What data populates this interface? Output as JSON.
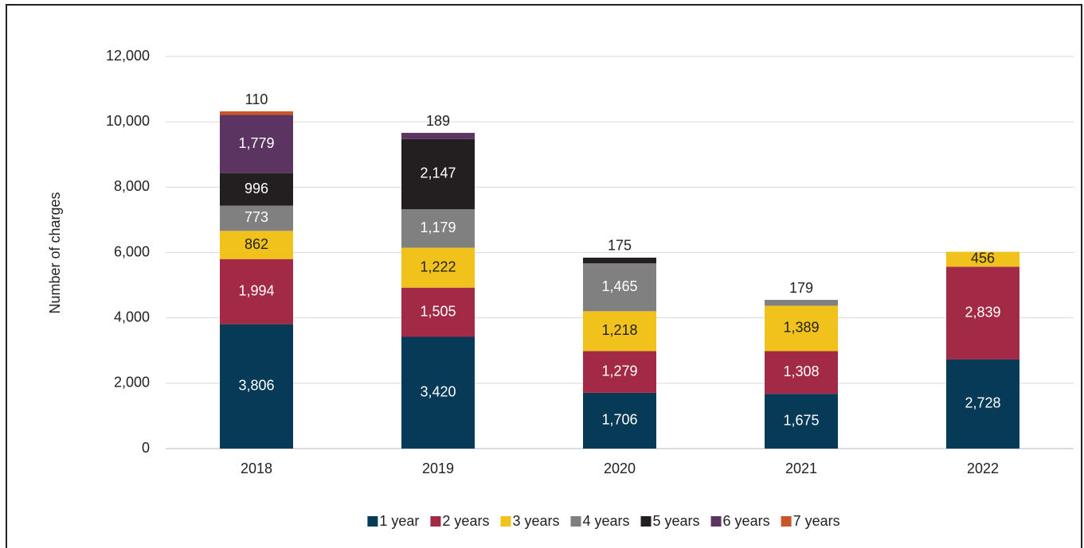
{
  "chart_data": {
    "type": "stacked_bar",
    "ylabel": "Number of charges",
    "categories": [
      "2018",
      "2019",
      "2020",
      "2021",
      "2022"
    ],
    "series": [
      {
        "name": "1 year",
        "color": "#073a57",
        "values": [
          3806,
          3420,
          1706,
          1675,
          2728
        ],
        "value_labels": [
          "3,806",
          "3,420",
          "1,706",
          "1,675",
          "2,728"
        ]
      },
      {
        "name": "2 years",
        "color": "#a22a46",
        "values": [
          1994,
          1505,
          1279,
          1308,
          2839
        ],
        "value_labels": [
          "1,994",
          "1,505",
          "1,279",
          "1,308",
          "2,839"
        ]
      },
      {
        "name": "3 years",
        "color": "#f1c21b",
        "values": [
          862,
          1222,
          1218,
          1389,
          456
        ],
        "value_labels": [
          "862",
          "1,222",
          "1,218",
          "1,389",
          "456"
        ]
      },
      {
        "name": "4 years",
        "color": "#808080",
        "values": [
          773,
          1179,
          1465,
          179,
          null
        ],
        "value_labels": [
          "773",
          "1,179",
          "1,465",
          "179",
          null
        ]
      },
      {
        "name": "5 years",
        "color": "#231f20",
        "values": [
          996,
          2147,
          175,
          null,
          null
        ],
        "value_labels": [
          "996",
          "2,147",
          "175",
          null,
          null
        ]
      },
      {
        "name": "6 years",
        "color": "#5b3461",
        "values": [
          1779,
          189,
          null,
          null,
          null
        ],
        "value_labels": [
          "1,779",
          "189",
          null,
          null,
          null
        ]
      },
      {
        "name": "7 years",
        "color": "#c8562a",
        "values": [
          110,
          null,
          null,
          null,
          null
        ],
        "value_labels": [
          "110",
          null,
          null,
          null,
          null
        ]
      }
    ],
    "ylim": [
      0,
      12000
    ],
    "yticks": [
      0,
      {
        "value": 2000,
        "label": "2,000"
      },
      {
        "value": 4000,
        "label": "4,000"
      },
      {
        "value": 6000,
        "label": "6,000"
      },
      {
        "value": 8000,
        "label": "8,000"
      },
      {
        "value": 10000,
        "label": "10,000"
      },
      {
        "value": 12000,
        "label": "12,000"
      }
    ],
    "grid": true,
    "legend": "bottom"
  }
}
